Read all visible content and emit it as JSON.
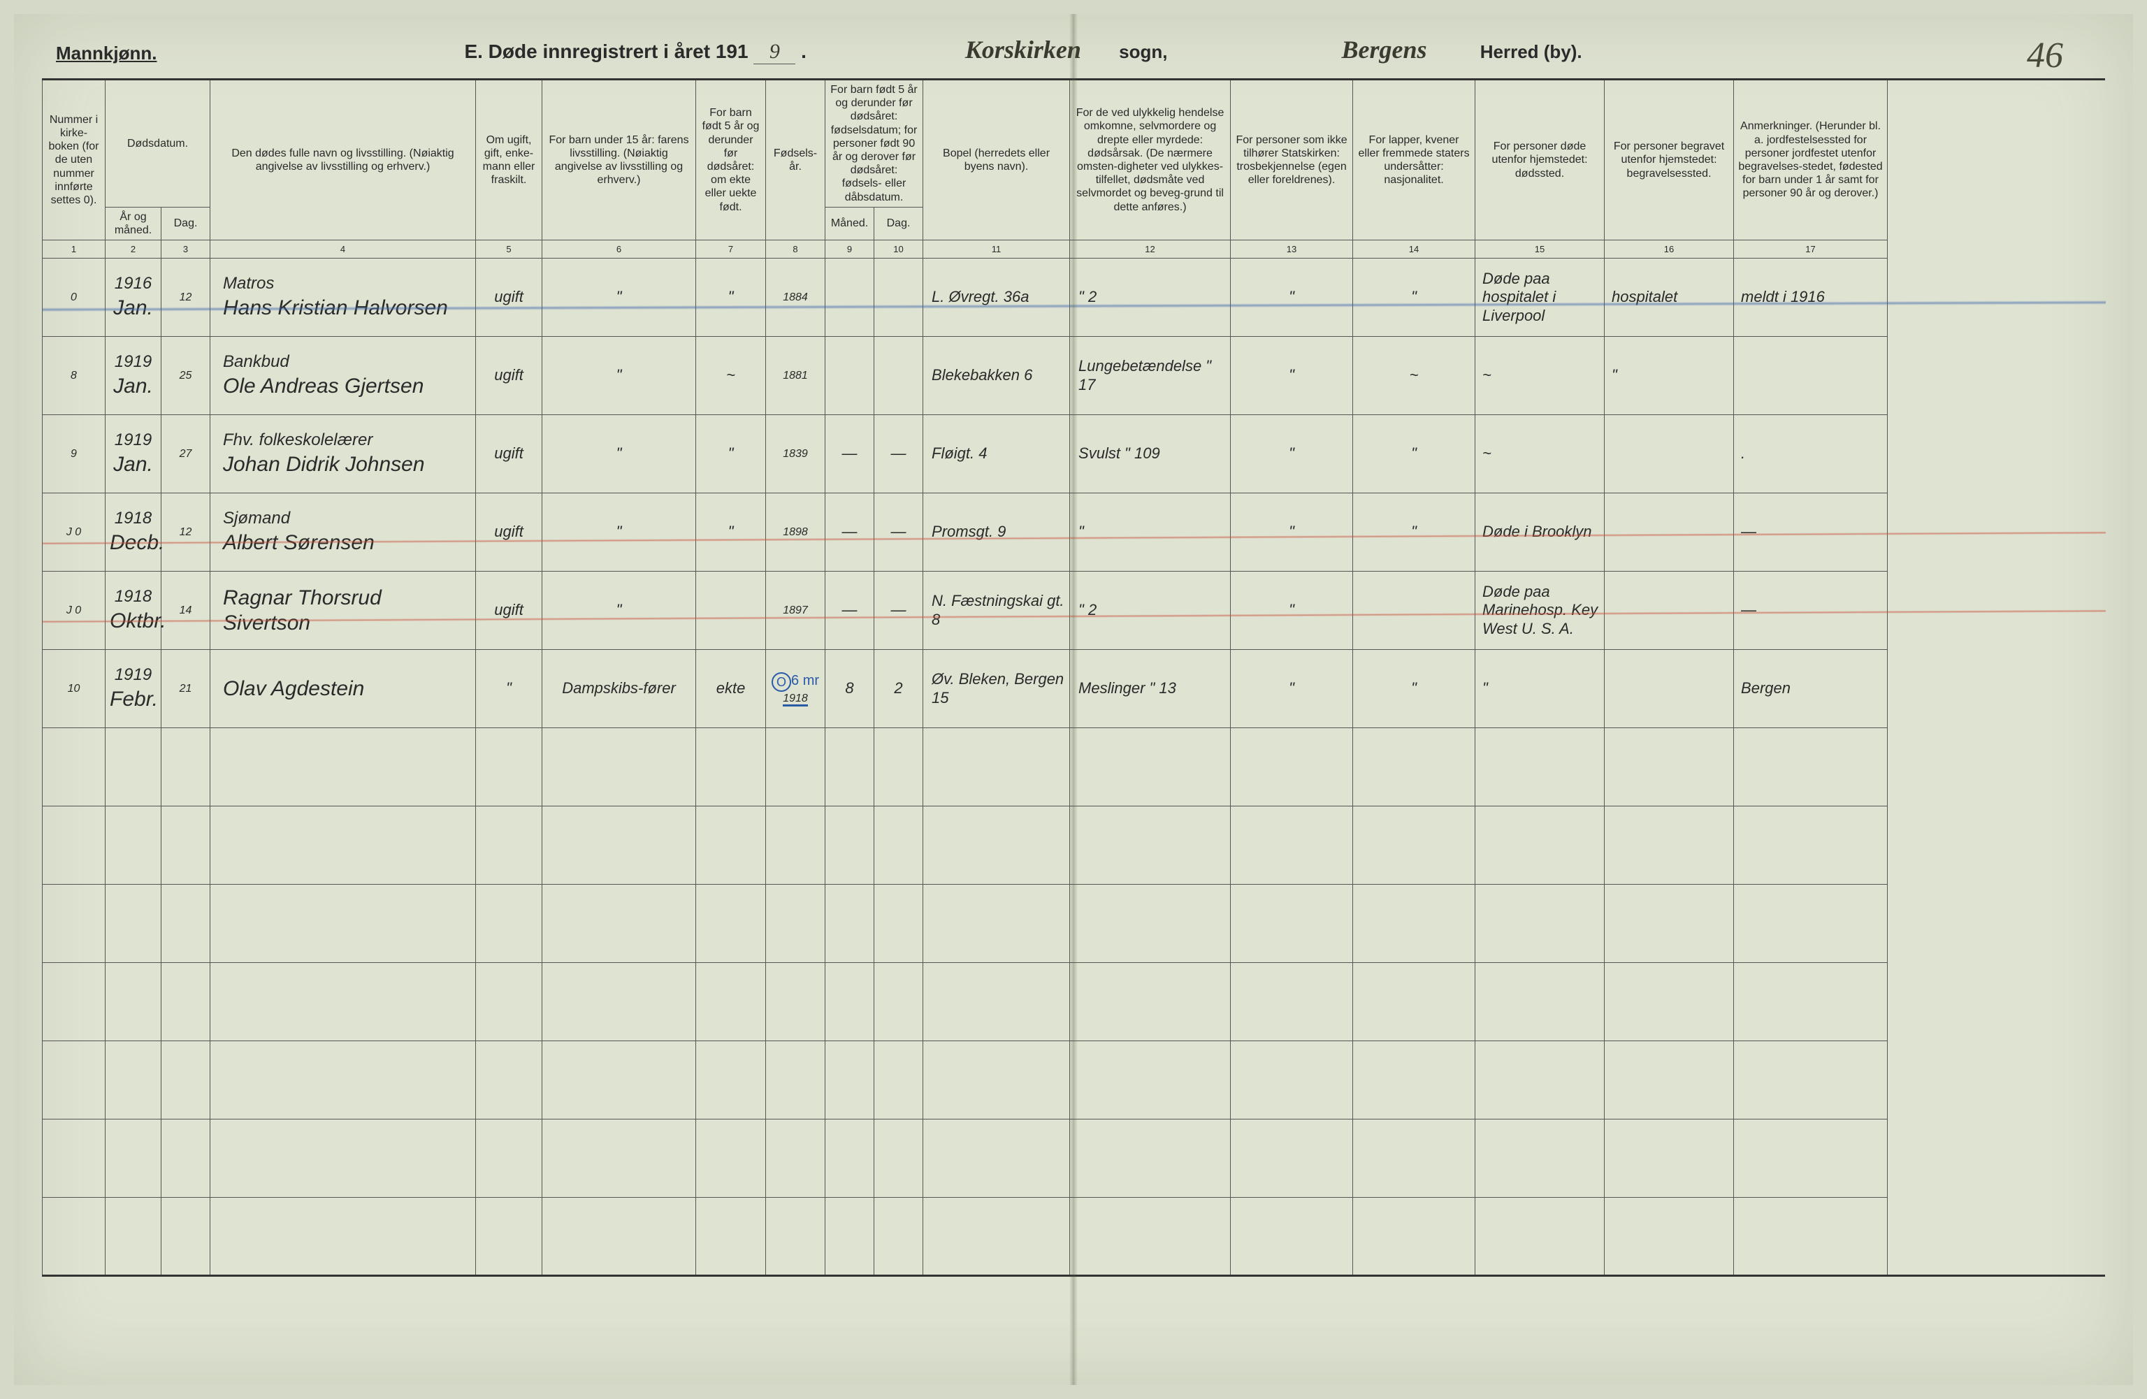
{
  "page": {
    "gender_label": "Mannkjønn.",
    "title_prefix": "E. Døde innregistrert i året 191",
    "title_year_digit": "9",
    "title_suffix": ".",
    "sogn_value": "Korskirken",
    "sogn_label": "sogn,",
    "herred_value": "Bergens",
    "herred_label": "Herred (by).",
    "page_number": "46"
  },
  "colors": {
    "paper": "#dfe3d2",
    "ink": "#2a2a2a",
    "script": "#2f2f25",
    "rule": "#555555",
    "blue_pencil": "#2a5aa8",
    "red_pencil": "#c8503c"
  },
  "columns": {
    "c1": "Nummer i kirke-boken (for de uten nummer innførte settes 0).",
    "c2_group": "Dødsdatum.",
    "c2": "År og måned.",
    "c3": "Dag.",
    "c4": "Den dødes fulle navn og livsstilling. (Nøiaktig angivelse av livsstilling og erhverv.)",
    "c5": "Om ugift, gift, enke-mann eller fraskilt.",
    "c6": "For barn under 15 år: farens livsstilling. (Nøiaktig angivelse av livsstilling og erhverv.)",
    "c7": "For barn født 5 år og derunder før dødsåret: om ekte eller uekte født.",
    "c8": "Fødsels-år.",
    "c9_10_group": "For barn født 5 år og derunder før dødsåret: fødselsdatum; for personer født 90 år og derover før dødsåret: fødsels- eller dåbsdatum.",
    "c9": "Måned.",
    "c10": "Dag.",
    "c11": "Bopel (herredets eller byens navn).",
    "c12": "For de ved ulykkelig hendelse omkomne, selvmordere og drepte eller myrdede: dødsårsak. (De nærmere omsten-digheter ved ulykkes-tilfellet, dødsmåte ved selvmordet og beveg-grund til dette anføres.)",
    "c13": "For personer som ikke tilhører Statskirken: trosbekjennelse (egen eller foreldrenes).",
    "c14": "For lapper, kvener eller fremmede staters undersåtter: nasjonalitet.",
    "c15": "For personer døde utenfor hjemstedet: dødssted.",
    "c16": "For personer begravet utenfor hjemstedet: begravelsessted.",
    "c17": "Anmerkninger. (Herunder bl. a. jordfestelsessted for personer jordfestet utenfor begravelses-stedet, fødested for barn under 1 år samt for personer 90 år og derover.)",
    "nums": [
      "1",
      "2",
      "3",
      "4",
      "5",
      "6",
      "7",
      "8",
      "9",
      "10",
      "11",
      "12",
      "13",
      "14",
      "15",
      "16",
      "17"
    ]
  },
  "rows": [
    {
      "strike": "blue",
      "num": "0",
      "year": "1916",
      "month": "Jan.",
      "day": "12",
      "occupation": "Matros",
      "name": "Hans Kristian Halvorsen",
      "marital": "ugift",
      "father": "\"",
      "legit": "\"",
      "birth_year": "1884",
      "bd_m": "",
      "bd_d": "",
      "residence": "L. Øvregt. 36a",
      "cause": "\"   2",
      "faith": "\"",
      "nation": "\"",
      "deathplace": "Døde paa hospitalet i Liverpool",
      "burialplace": "hospitalet",
      "remarks": "meldt i 1916"
    },
    {
      "strike": "",
      "num": "8",
      "year": "1919",
      "month": "Jan.",
      "day": "25",
      "occupation": "Bankbud",
      "name": "Ole Andreas Gjertsen",
      "marital": "ugift",
      "father": "\"",
      "legit": "~",
      "birth_year": "1881",
      "bd_m": "",
      "bd_d": "",
      "residence": "Blekebakken 6",
      "cause": "Lungebetændelse   \"   17",
      "faith": "\"",
      "nation": "~",
      "deathplace": "~",
      "burialplace": "\"",
      "remarks": ""
    },
    {
      "strike": "",
      "num": "9",
      "year": "1919",
      "month": "Jan.",
      "day": "27",
      "occupation": "Fhv. folkeskolelærer",
      "name": "Johan Didrik Johnsen",
      "marital": "ugift",
      "father": "\"",
      "legit": "\"",
      "birth_year": "1839",
      "bd_m": "—",
      "bd_d": "—",
      "residence": "Fløigt. 4",
      "cause": "Svulst   \"   109",
      "faith": "\"",
      "nation": "\"",
      "deathplace": "~",
      "burialplace": "",
      "remarks": "."
    },
    {
      "strike": "red",
      "num": "J  0",
      "year": "1918",
      "month": "Decb.",
      "day": "12",
      "occupation": "Sjømand",
      "name": "Albert Sørensen",
      "marital": "ugift",
      "father": "\"",
      "legit": "\"",
      "birth_year": "1898",
      "bd_m": "—",
      "bd_d": "—",
      "residence": "Promsgt. 9",
      "cause": "\"",
      "faith": "\"",
      "nation": "\"",
      "deathplace": "Døde i Brooklyn",
      "burialplace": "",
      "remarks": "—"
    },
    {
      "strike": "red",
      "num": "J  0",
      "year": "1918",
      "month": "Oktbr.",
      "day": "14",
      "occupation": "",
      "name": "Ragnar Thorsrud Sivertson",
      "marital": "ugift",
      "father": "\"",
      "legit": "",
      "birth_year": "1897",
      "bd_m": "—",
      "bd_d": "—",
      "residence": "N. Fæstningskai gt. 8",
      "cause": "\"   2",
      "faith": "\"",
      "nation": "",
      "deathplace": "Døde paa Marinehosp. Key West U. S. A.",
      "burialplace": "",
      "remarks": "—"
    },
    {
      "strike": "",
      "num": "10",
      "year": "1919",
      "month": "Febr.",
      "day": "21",
      "occupation": "",
      "name": "Olav Agdestein",
      "marital": "\"",
      "father": "Dampskibs-fører",
      "legit": "ekte",
      "birth_year": "1918",
      "birth_year_note": "◯ 6 mr",
      "bd_m": "8",
      "bd_d": "2",
      "residence": "Øv. Bleken, Bergen 15",
      "cause": "Meslinger   \"   13",
      "faith": "\"",
      "nation": "\"",
      "deathplace": "\"",
      "burialplace": "",
      "remarks": "Bergen"
    }
  ],
  "empty_row_count": 7
}
